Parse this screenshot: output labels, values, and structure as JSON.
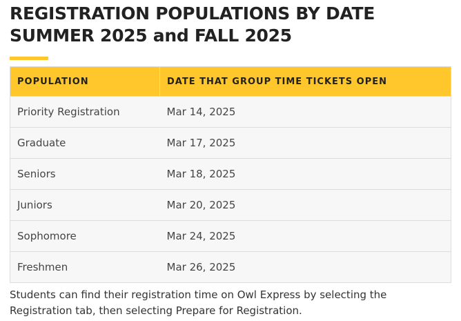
{
  "header": {
    "title_line1": "REGISTRATION POPULATIONS BY DATE",
    "title_line2": "SUMMER 2025 and FALL 2025"
  },
  "table": {
    "columns": [
      "POPULATION",
      "DATE THAT GROUP TIME TICKETS OPEN"
    ],
    "rows": [
      [
        "Priority Registration",
        "Mar 14, 2025"
      ],
      [
        "Graduate",
        "Mar 17, 2025"
      ],
      [
        "Seniors",
        "Mar 18, 2025"
      ],
      [
        "Juniors",
        "Mar 20, 2025"
      ],
      [
        "Sophomore",
        "Mar 24, 2025"
      ],
      [
        "Freshmen",
        "Mar 26, 2025"
      ]
    ]
  },
  "footer": {
    "text": "Students can find their registration time on Owl Express by selecting the Registration tab, then selecting Prepare for Registration."
  }
}
